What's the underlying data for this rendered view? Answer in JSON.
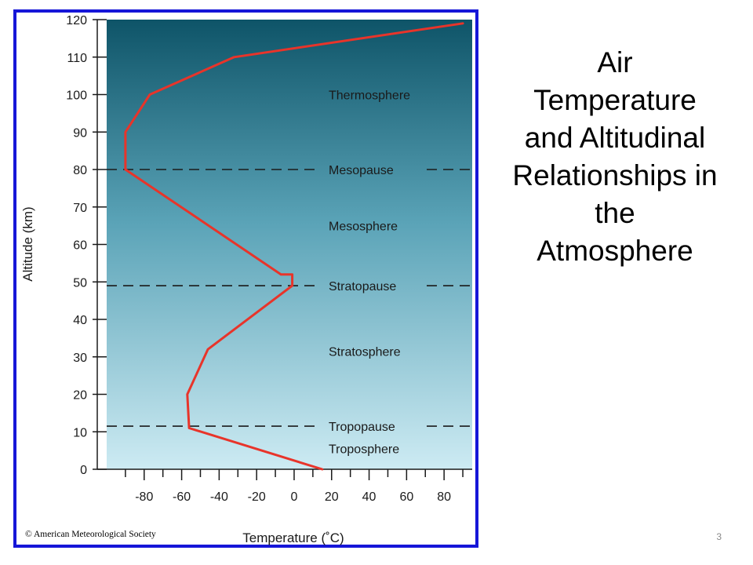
{
  "slide": {
    "title_lines": [
      "Air",
      "Temperature",
      "and Altitudinal",
      "Relationships in",
      "the",
      "Atmosphere"
    ],
    "page_number": "3",
    "copyright": "© American Meteorological Society"
  },
  "colors": {
    "frame_border": "#1616d8",
    "gradient_top": "#0e5468",
    "gradient_mid": "#5aa3b7",
    "gradient_bottom": "#cdebf3",
    "profile_line": "#e8342a",
    "boundary_dash": "#1a1a1a"
  },
  "chart_data": {
    "type": "line",
    "title": "",
    "xlabel": "Temperature (˚C)",
    "ylabel": "Altitude (km)",
    "xlim": [
      -100,
      95
    ],
    "ylim": [
      0,
      120
    ],
    "x_ticks": [
      -80,
      -60,
      -40,
      -20,
      0,
      20,
      40,
      60,
      80
    ],
    "y_ticks": [
      0,
      10,
      20,
      30,
      40,
      50,
      60,
      70,
      80,
      90,
      100,
      110,
      120
    ],
    "grid": false,
    "series": [
      {
        "x": [
          15,
          -56,
          -57,
          -57,
          -46,
          -1,
          -1,
          -7,
          -90,
          -90,
          -77,
          -32,
          90
        ],
        "y": [
          0,
          11,
          20,
          20,
          32,
          49,
          52,
          52,
          80,
          90,
          100,
          110,
          119
        ]
      }
    ],
    "boundaries": [
      {
        "name": "Tropopause",
        "altitude": 11.5
      },
      {
        "name": "Stratopause",
        "altitude": 49
      },
      {
        "name": "Mesopause",
        "altitude": 80
      }
    ],
    "layers": [
      {
        "name": "Troposphere",
        "altitude": 5.5
      },
      {
        "name": "Tropopause",
        "altitude": 11.5
      },
      {
        "name": "Stratosphere",
        "altitude": 31.5
      },
      {
        "name": "Stratopause",
        "altitude": 49
      },
      {
        "name": "Mesosphere",
        "altitude": 65
      },
      {
        "name": "Mesopause",
        "altitude": 80
      },
      {
        "name": "Thermosphere",
        "altitude": 100
      }
    ]
  }
}
